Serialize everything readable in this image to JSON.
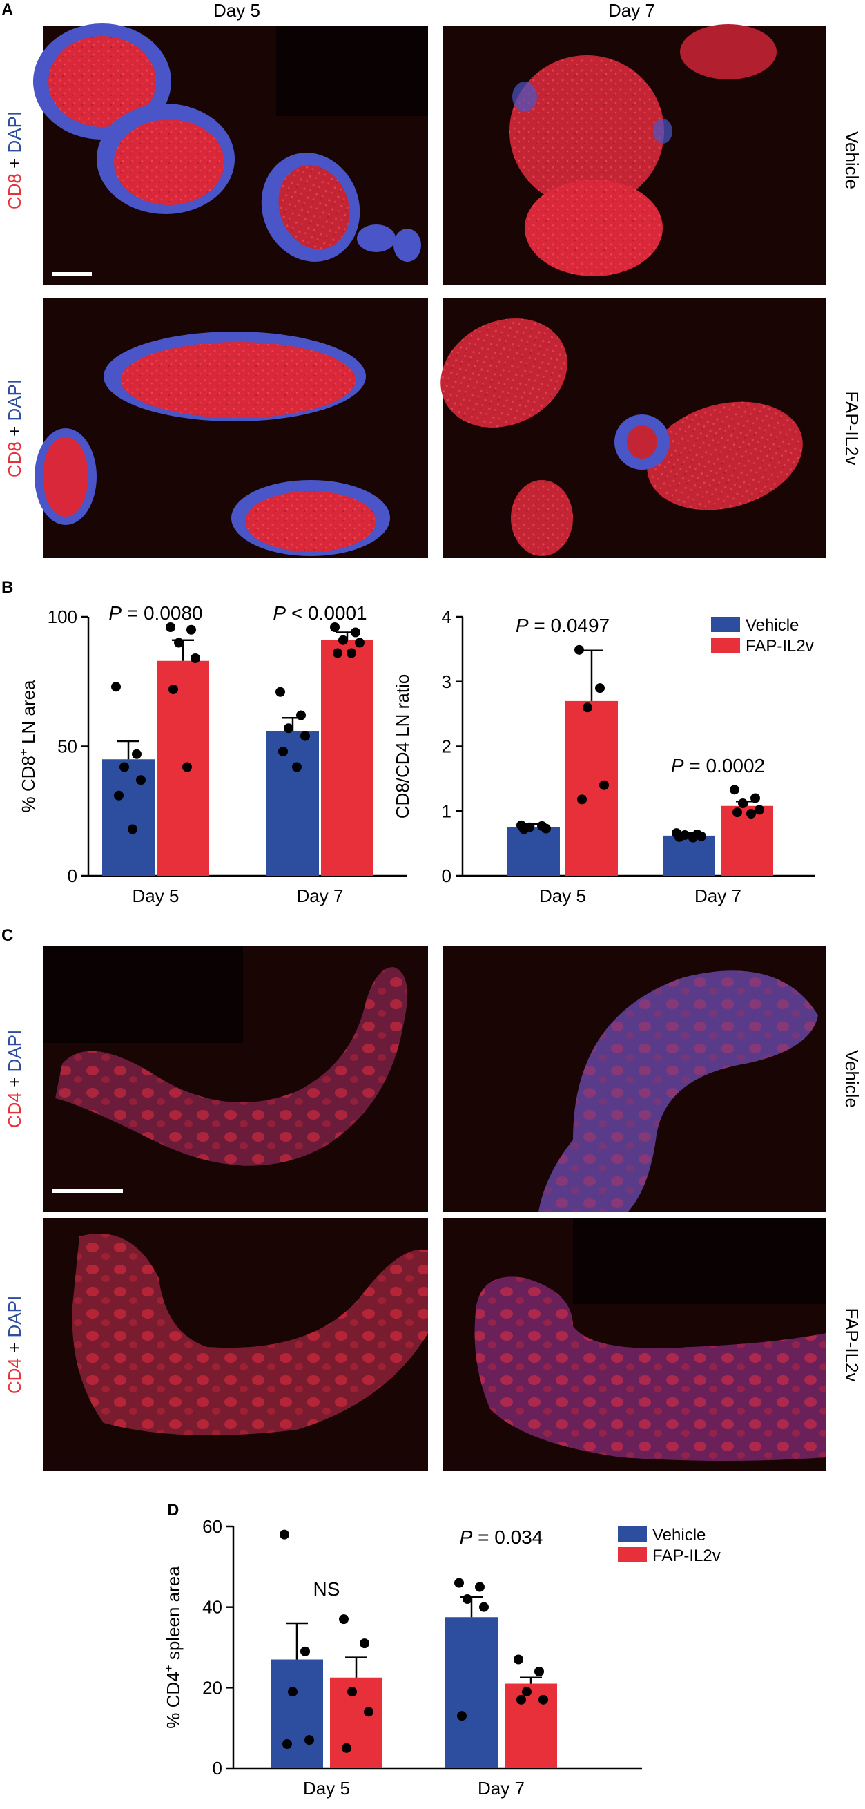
{
  "panels": {
    "A": "A",
    "B": "B",
    "C": "C",
    "D": "D"
  },
  "panel_a": {
    "col_headers": [
      "Day 5",
      "Day 7"
    ],
    "row_labels": [
      "Vehicle",
      "FAP-IL2v"
    ],
    "stain": {
      "marker": "CD8",
      "joiner": " + ",
      "counter": "DAPI"
    }
  },
  "panel_c": {
    "row_labels": [
      "Vehicle",
      "FAP-IL2v"
    ],
    "stain": {
      "marker": "CD4",
      "joiner": " + ",
      "counter": "DAPI"
    }
  },
  "colors": {
    "vehicle": "#2d4d9e",
    "fap": "#e8303a",
    "marker_text": "#e8303a",
    "counter_text": "#2d4d9e",
    "tissue_red": "#d8283a",
    "tissue_blue": "#4a55c8",
    "micro_bg": "#1a0505"
  },
  "legend": [
    "Vehicle",
    "FAP-IL2v"
  ],
  "chart_data": [
    {
      "id": "B-left",
      "type": "bar",
      "ylabel": "% CD8+ LN area",
      "categories": [
        "Day 5",
        "Day 7"
      ],
      "ylim": [
        0,
        100
      ],
      "yticks": [
        0,
        50,
        100
      ],
      "series": [
        {
          "name": "Vehicle",
          "values": [
            45,
            56
          ],
          "sem": [
            7,
            5
          ],
          "points": [
            [
              73,
              47,
              42,
              37,
              31,
              18
            ],
            [
              71,
              62,
              57,
              54,
              48,
              42
            ]
          ]
        },
        {
          "name": "FAP-IL2v",
          "values": [
            83,
            91
          ],
          "sem": [
            8,
            3
          ],
          "points": [
            [
              96,
              95,
              90,
              84,
              72,
              42
            ],
            [
              96,
              94,
              91,
              90,
              86,
              86
            ]
          ]
        }
      ],
      "annotations": [
        {
          "category": "Day 5",
          "p": "P",
          "op": " = ",
          "val": "0.0080"
        },
        {
          "category": "Day 7",
          "p": "P",
          "op": " < ",
          "val": "0.0001"
        }
      ],
      "legend": false
    },
    {
      "id": "B-right",
      "type": "bar",
      "ylabel": "CD8/CD4 LN ratio",
      "categories": [
        "Day 5",
        "Day 7"
      ],
      "ylim": [
        0,
        4
      ],
      "yticks": [
        0,
        1,
        2,
        3,
        4
      ],
      "series": [
        {
          "name": "Vehicle",
          "values": [
            0.75,
            0.62
          ],
          "sem": [
            0.05,
            0.04
          ],
          "points": [
            [
              0.78,
              0.77,
              0.75,
              0.73,
              0.72
            ],
            [
              0.66,
              0.64,
              0.63,
              0.61,
              0.6,
              0.59
            ]
          ]
        },
        {
          "name": "FAP-IL2v",
          "values": [
            2.7,
            1.08
          ],
          "sem": [
            0.78,
            0.07
          ],
          "points": [
            [
              3.49,
              2.9,
              2.6,
              1.4,
              1.18
            ],
            [
              1.33,
              1.2,
              1.12,
              1.02,
              0.98,
              0.96
            ]
          ]
        }
      ],
      "annotations": [
        {
          "category": "Day 5",
          "p": "P",
          "op": " = ",
          "val": "0.0497"
        },
        {
          "category": "Day 7",
          "p": "P",
          "op": " = ",
          "val": "0.0002"
        }
      ],
      "legend": true,
      "legend_position": "top-right"
    },
    {
      "id": "D",
      "type": "bar",
      "ylabel": "% CD4+ spleen area",
      "categories": [
        "Day 5",
        "Day 7"
      ],
      "ylim": [
        0,
        60
      ],
      "yticks": [
        0,
        20,
        40,
        60
      ],
      "series": [
        {
          "name": "Vehicle",
          "values": [
            27,
            37.5
          ],
          "sem": [
            9,
            5
          ],
          "points": [
            [
              58,
              29,
              19,
              7,
              6
            ],
            [
              46,
              45,
              42,
              40,
              13
            ]
          ]
        },
        {
          "name": "FAP-IL2v",
          "values": [
            22.5,
            21
          ],
          "sem": [
            5,
            1.5
          ],
          "points": [
            [
              37,
              31,
              19,
              14,
              5
            ],
            [
              27,
              24,
              19,
              17,
              17
            ]
          ]
        }
      ],
      "annotations": [
        {
          "category": "Day 5",
          "ns": "NS"
        },
        {
          "category": "Day 7",
          "p": "P",
          "op": " = ",
          "val": "0.034"
        }
      ],
      "legend": true,
      "legend_position": "top-right"
    }
  ]
}
